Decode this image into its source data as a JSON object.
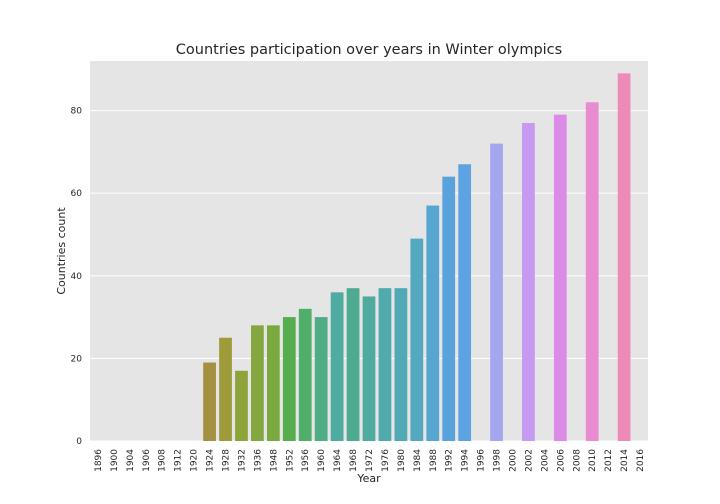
{
  "chart_data": {
    "type": "bar",
    "title": "Countries participation over years in Winter olympics",
    "xlabel": "Year",
    "ylabel": "Countries count",
    "ylim": [
      0,
      92
    ],
    "yticks": [
      0,
      20,
      40,
      60,
      80
    ],
    "grid": true,
    "background": "#e5e5e5",
    "categories": [
      "1896",
      "1900",
      "1904",
      "1906",
      "1908",
      "1912",
      "1920",
      "1924",
      "1928",
      "1932",
      "1936",
      "1948",
      "1952",
      "1956",
      "1960",
      "1964",
      "1968",
      "1972",
      "1976",
      "1980",
      "1984",
      "1988",
      "1992",
      "1994",
      "1996",
      "1998",
      "2000",
      "2002",
      "2004",
      "2006",
      "2008",
      "2010",
      "2012",
      "2014",
      "2016"
    ],
    "values": [
      0,
      0,
      0,
      0,
      0,
      0,
      0,
      19,
      25,
      17,
      28,
      28,
      30,
      32,
      30,
      36,
      37,
      35,
      37,
      37,
      49,
      57,
      64,
      67,
      0,
      72,
      0,
      77,
      0,
      79,
      0,
      82,
      0,
      89,
      0
    ],
    "colors": [
      "#f77189",
      "#f7754f",
      "#e1823e",
      "#c98e32",
      "#b59a31",
      "#a3a031",
      "#8ea631",
      "#a58f41",
      "#9e9c3a",
      "#8da43a",
      "#84a73f",
      "#7aaa3f",
      "#55ad4d",
      "#4eae6a",
      "#4ead85",
      "#4faca0",
      "#4eab91",
      "#4fab9e",
      "#51aaac",
      "#52a9b6",
      "#54a9c1",
      "#56a6cf",
      "#59a2dc",
      "#5da3e1",
      "#8aa3ed",
      "#a5a6f0",
      "#b8a0f0",
      "#c59af0",
      "#d58cec",
      "#dc8be6",
      "#e38ad9",
      "#e98bd1",
      "#ec8bc8",
      "#ee8ab8",
      "#ef8aa8"
    ]
  }
}
